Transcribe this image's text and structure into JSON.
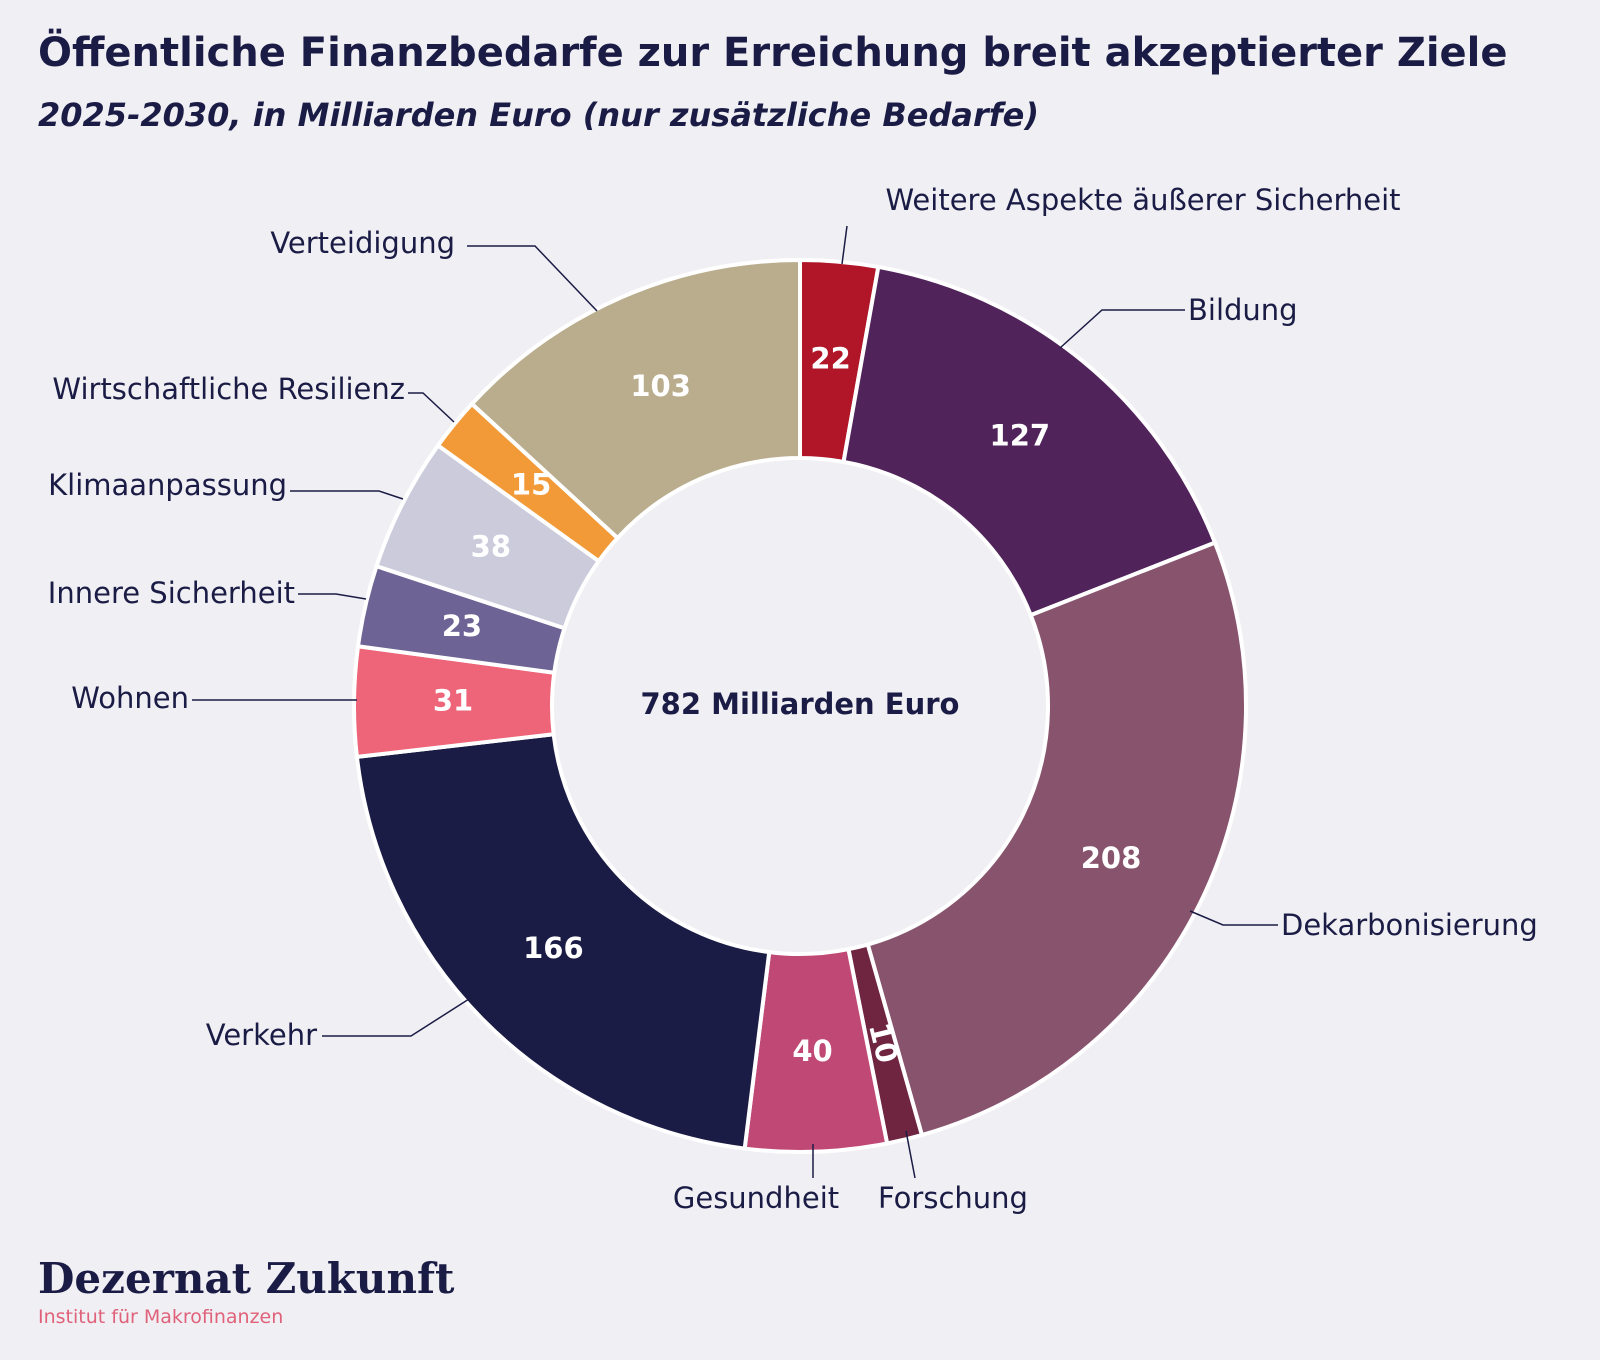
{
  "header": {
    "title": "Öffentliche Finanzbedarfe zur Erreichung breit akzeptierter Ziele",
    "subtitle": "2025-2030, in Milliarden Euro (nur zusätzliche Bedarfe)"
  },
  "chart_data": {
    "type": "pie",
    "variant": "donut",
    "title": "Öffentliche Finanzbedarfe zur Erreichung breit akzeptierter Ziele",
    "subtitle": "2025-2030, in Milliarden Euro (nur zusätzliche Bedarfe)",
    "center_label": "782 Milliarden Euro",
    "direction": "clockwise from top",
    "categories": [
      "Weitere Aspekte äußerer Sicherheit",
      "Bildung",
      "Dekarbonisierung",
      "Forschung",
      "Gesundheit",
      "Verkehr",
      "Wohnen",
      "Innere Sicherheit",
      "Klimaanpassung",
      "Wirtschaftliche Resilienz",
      "Verteidigung"
    ],
    "values": [
      22,
      127,
      208,
      10,
      40,
      166,
      31,
      23,
      38,
      15,
      103
    ],
    "colors": [
      "#b01628",
      "#50245b",
      "#87536d",
      "#6f2440",
      "#c04874",
      "#1b1c45",
      "#ee6478",
      "#6d6495",
      "#cccbdc",
      "#f29a38",
      "#b9ad8d"
    ],
    "label_side": [
      "right",
      "right",
      "right",
      "right",
      "left",
      "left",
      "left",
      "left",
      "left",
      "left",
      "left"
    ]
  },
  "branding": {
    "name": "Dezernat Zukunft",
    "tagline": "Institut für Makrofinanzen"
  }
}
